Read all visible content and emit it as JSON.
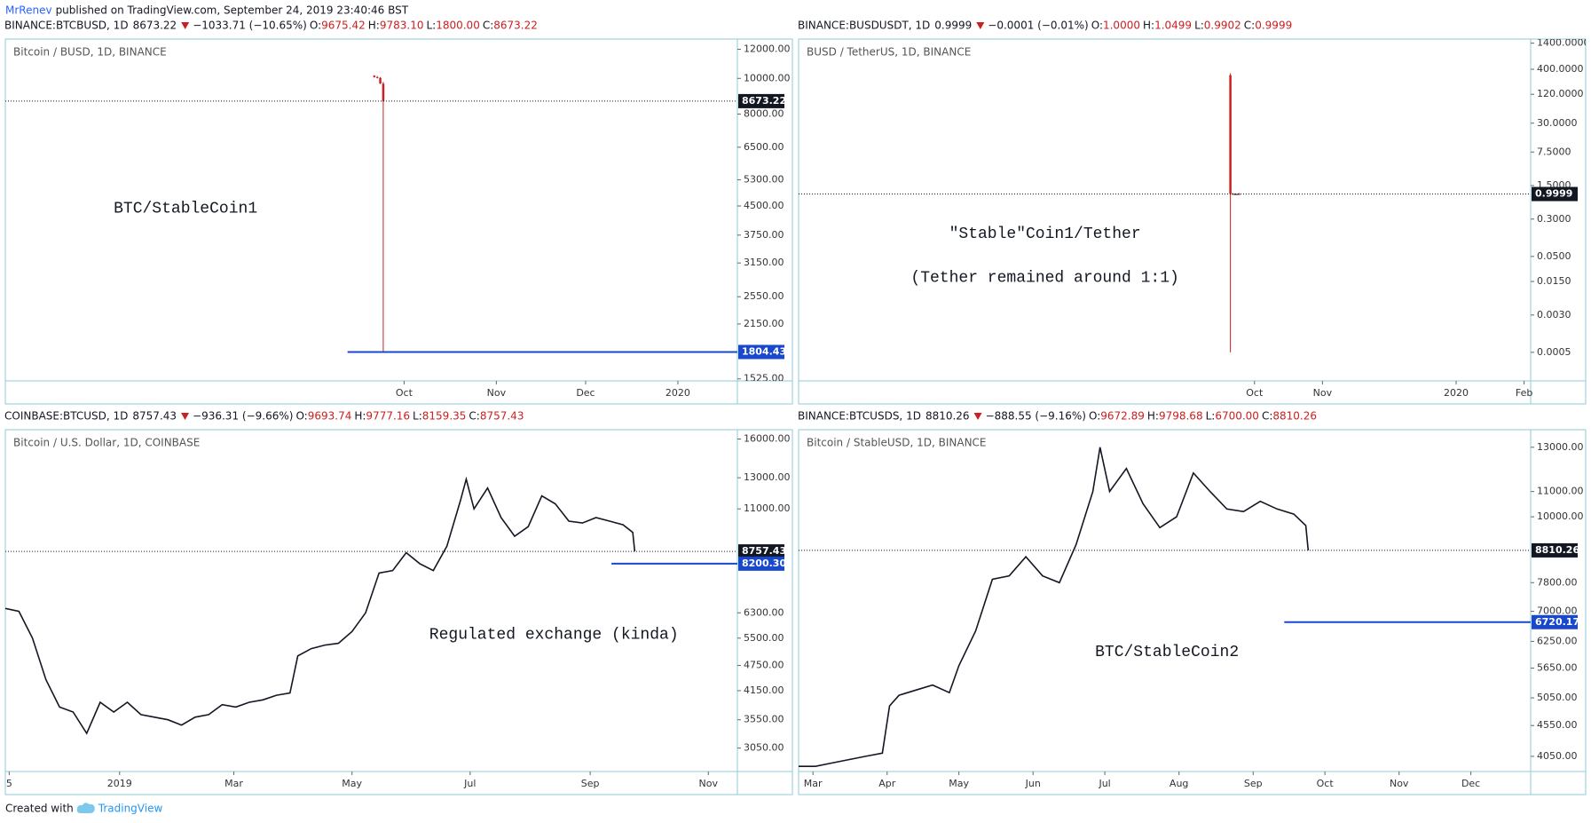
{
  "page": {
    "author": "MrRenev",
    "published": "published on TradingView.com, September 24, 2019 23:40:46 BST",
    "created": "Created with",
    "brand": "TradingView"
  },
  "ohlc_labels": [
    "O:",
    "H:",
    "L:",
    "C:"
  ],
  "chart_data": [
    {
      "type": "candlestick",
      "title": "Bitcoin / BUSD, 1D, BINANCE",
      "header": {
        "symbol": "BINANCE:BTCBUSD, 1D",
        "last": "8673.22",
        "change": "−1033.71 (−10.65%)",
        "ohlc": [
          "9675.42",
          "9783.10",
          "1800.00",
          "8673.22"
        ]
      },
      "annotations": [
        "BTC/StableCoin1"
      ],
      "x": [
        263,
        264,
        265,
        266
      ],
      "open": [
        10170,
        10080,
        10030,
        9675.42
      ],
      "high": [
        10200,
        10150,
        10080,
        9783.1
      ],
      "low": [
        10050,
        10000,
        9650,
        1800
      ],
      "close": [
        10080,
        10030,
        9690,
        8673.22
      ],
      "up_color": "#131722",
      "down_color": "#cc1f1f",
      "log": true,
      "xlim": [
        139,
        385
      ],
      "xticks": [
        {
          "value": 273,
          "label": "Oct"
        },
        {
          "value": 304,
          "label": "Nov"
        },
        {
          "value": 334,
          "label": "Dec"
        },
        {
          "value": 365,
          "label": "2020"
        }
      ],
      "ylim": [
        1506,
        12790
      ],
      "yticks": [
        {
          "value": 12000,
          "label": "12000.00"
        },
        {
          "value": 10000,
          "label": "10000.00"
        },
        {
          "value": 8000,
          "label": "8000.00"
        },
        {
          "value": 6500,
          "label": "6500.00"
        },
        {
          "value": 5300,
          "label": "5300.00"
        },
        {
          "value": 4500,
          "label": "4500.00"
        },
        {
          "value": 3750,
          "label": "3750.00"
        },
        {
          "value": 3150,
          "label": "3150.00"
        },
        {
          "value": 2550,
          "label": "2550.00"
        },
        {
          "value": 2150,
          "label": "2150.00"
        },
        {
          "value": 1525,
          "label": "1525.00"
        }
      ],
      "last_price": {
        "value": 8673.22,
        "label": "8673.22"
      },
      "level": {
        "value": 1804.43,
        "label": "1804.43",
        "x": 254,
        "color": "#1848cc"
      }
    },
    {
      "type": "candlestick",
      "title": "BUSD / TetherUS, 1D, BINANCE",
      "header": {
        "symbol": "BINANCE:BUSDUSDT, 1D",
        "last": "0.9999",
        "change": "−0.0001 (−0.01%)",
        "ohlc": [
          "1.0000",
          "1.0499",
          "0.9902",
          "0.9999"
        ]
      },
      "annotations": [
        "\"Stable\"Coin1/Tether",
        "(Tether remained around 1:1)"
      ],
      "x": [
        262,
        263,
        264,
        265,
        266
      ],
      "open": [
        300,
        1.01,
        1.0,
        1.0,
        1.0
      ],
      "high": [
        330,
        1.05,
        1.02,
        1.01,
        1.0499
      ],
      "low": [
        0.0005,
        0.98,
        0.99,
        0.99,
        0.9902
      ],
      "close": [
        1.01,
        1.0,
        1.0,
        1.0,
        0.9999
      ],
      "up_color": "#131722",
      "down_color": "#cc1f1f",
      "log": true,
      "xlim": [
        65,
        399
      ],
      "xticks": [
        {
          "value": 273,
          "label": "Oct"
        },
        {
          "value": 304,
          "label": "Nov"
        },
        {
          "value": 365,
          "label": "2020"
        },
        {
          "value": 396,
          "label": "Feb"
        }
      ],
      "ylim": [
        0.000127,
        1703
      ],
      "yticks": [
        {
          "value": 1400,
          "label": "1400.0000"
        },
        {
          "value": 400,
          "label": "400.0000"
        },
        {
          "value": 120,
          "label": "120.0000"
        },
        {
          "value": 30,
          "label": "30.0000"
        },
        {
          "value": 7.5,
          "label": "7.5000"
        },
        {
          "value": 1.5,
          "label": "1.5000"
        },
        {
          "value": 0.3,
          "label": "0.3000"
        },
        {
          "value": 0.05,
          "label": "0.0500"
        },
        {
          "value": 0.015,
          "label": "0.0150"
        },
        {
          "value": 0.003,
          "label": "0.0030"
        },
        {
          "value": 0.0005,
          "label": "0.0005"
        }
      ],
      "last_price": {
        "value": 0.9999,
        "label": "0.9999"
      }
    },
    {
      "type": "line",
      "title": "Bitcoin / U.S. Dollar, 1D, COINBASE",
      "header": {
        "symbol": "COINBASE:BTCUSD, 1D",
        "last": "8757.43",
        "change": "−936.31 (−9.66%)",
        "ohlc": [
          "9693.74",
          "9777.16",
          "8159.35",
          "8757.43"
        ]
      },
      "annotations": [
        "Regulated exchange (kinda)"
      ],
      "x": [
        -59,
        -52,
        -45,
        -38,
        -31,
        -24,
        -17,
        -10,
        -3,
        4,
        11,
        18,
        25,
        32,
        39,
        46,
        53,
        60,
        67,
        74,
        81,
        88,
        92,
        99,
        106,
        113,
        120,
        127,
        134,
        141,
        148,
        155,
        162,
        169,
        176,
        179,
        183,
        190,
        197,
        204,
        211,
        218,
        225,
        232,
        239,
        246,
        253,
        260,
        265,
        266
      ],
      "values": [
        6450,
        6350,
        5500,
        4400,
        3800,
        3700,
        3300,
        3900,
        3700,
        3900,
        3650,
        3600,
        3550,
        3450,
        3600,
        3650,
        3850,
        3800,
        3900,
        3950,
        4050,
        4100,
        5000,
        5200,
        5300,
        5350,
        5700,
        6300,
        7800,
        7900,
        8700,
        8200,
        7900,
        9000,
        11500,
        12900,
        11000,
        12300,
        10500,
        9500,
        10000,
        11800,
        11300,
        10300,
        10200,
        10500,
        10300,
        10100,
        9693.74,
        8757.43
      ],
      "color": "#131722",
      "log": true,
      "xlim": [
        -59,
        319
      ],
      "xticks": [
        {
          "value": -57,
          "label": "5"
        },
        {
          "value": 0,
          "label": "2019"
        },
        {
          "value": 59,
          "label": "Mar"
        },
        {
          "value": 120,
          "label": "May"
        },
        {
          "value": 181,
          "label": "Jul"
        },
        {
          "value": 243,
          "label": "Sep"
        },
        {
          "value": 304,
          "label": "Nov"
        }
      ],
      "ylim": [
        2690,
        16820
      ],
      "yticks": [
        {
          "value": 16000,
          "label": "16000.00"
        },
        {
          "value": 13000,
          "label": "13000.00"
        },
        {
          "value": 11000,
          "label": "11000.00"
        },
        {
          "value": 6300,
          "label": "6300.00"
        },
        {
          "value": 5500,
          "label": "5500.00"
        },
        {
          "value": 4750,
          "label": "4750.00"
        },
        {
          "value": 4150,
          "label": "4150.00"
        },
        {
          "value": 3550,
          "label": "3550.00"
        },
        {
          "value": 3050,
          "label": "3050.00"
        }
      ],
      "last_price": {
        "value": 8757.43,
        "label": "8757.43"
      },
      "level": {
        "value": 8200.3,
        "label": "8200.30",
        "x": 254,
        "color": "#1848cc"
      }
    },
    {
      "type": "line",
      "title": "Bitcoin / StableUSD, 1D, BINANCE",
      "header": {
        "symbol": "BINANCE:BTCUSDS, 1D",
        "last": "8810.26",
        "change": "−888.55 (−9.16%)",
        "ohlc": [
          "9672.89",
          "9798.68",
          "6700.00",
          "8810.26"
        ]
      },
      "annotations": [
        "BTC/StableCoin2"
      ],
      "x": [
        53,
        60,
        67,
        74,
        81,
        88,
        91,
        95,
        102,
        109,
        116,
        120,
        127,
        134,
        141,
        148,
        155,
        162,
        169,
        176,
        179,
        183,
        190,
        197,
        204,
        211,
        218,
        225,
        232,
        239,
        246,
        253,
        260,
        265,
        266
      ],
      "values": [
        3900,
        3900,
        3950,
        4000,
        4050,
        4100,
        4900,
        5100,
        5200,
        5300,
        5150,
        5700,
        6500,
        7900,
        8000,
        8600,
        8000,
        7800,
        9000,
        11000,
        13000,
        11000,
        12000,
        10500,
        9600,
        10000,
        11800,
        11000,
        10300,
        10200,
        10600,
        10300,
        10100,
        9672.89,
        8810.26
      ],
      "color": "#131722",
      "log": true,
      "xlim": [
        53,
        359
      ],
      "xticks": [
        {
          "value": 59,
          "label": "Mar"
        },
        {
          "value": 90,
          "label": "Apr"
        },
        {
          "value": 120,
          "label": "May"
        },
        {
          "value": 151,
          "label": "Jun"
        },
        {
          "value": 181,
          "label": "Jul"
        },
        {
          "value": 212,
          "label": "Aug"
        },
        {
          "value": 243,
          "label": "Sep"
        },
        {
          "value": 273,
          "label": "Oct"
        },
        {
          "value": 304,
          "label": "Nov"
        },
        {
          "value": 334,
          "label": "Dec"
        }
      ],
      "ylim": [
        3825,
        13890
      ],
      "yticks": [
        {
          "value": 13000,
          "label": "13000.00"
        },
        {
          "value": 11000,
          "label": "11000.00"
        },
        {
          "value": 10000,
          "label": "10000.00"
        },
        {
          "value": 7800,
          "label": "7800.00"
        },
        {
          "value": 7000,
          "label": "7000.00"
        },
        {
          "value": 6250,
          "label": "6250.00"
        },
        {
          "value": 5650,
          "label": "5650.00"
        },
        {
          "value": 5050,
          "label": "5050.00"
        },
        {
          "value": 4550,
          "label": "4550.00"
        },
        {
          "value": 4050,
          "label": "4050.00"
        }
      ],
      "last_price": {
        "value": 8810.26,
        "label": "8810.26"
      },
      "level": {
        "value": 6720.17,
        "label": "6720.17",
        "x": 256,
        "color": "#1848cc"
      }
    }
  ]
}
